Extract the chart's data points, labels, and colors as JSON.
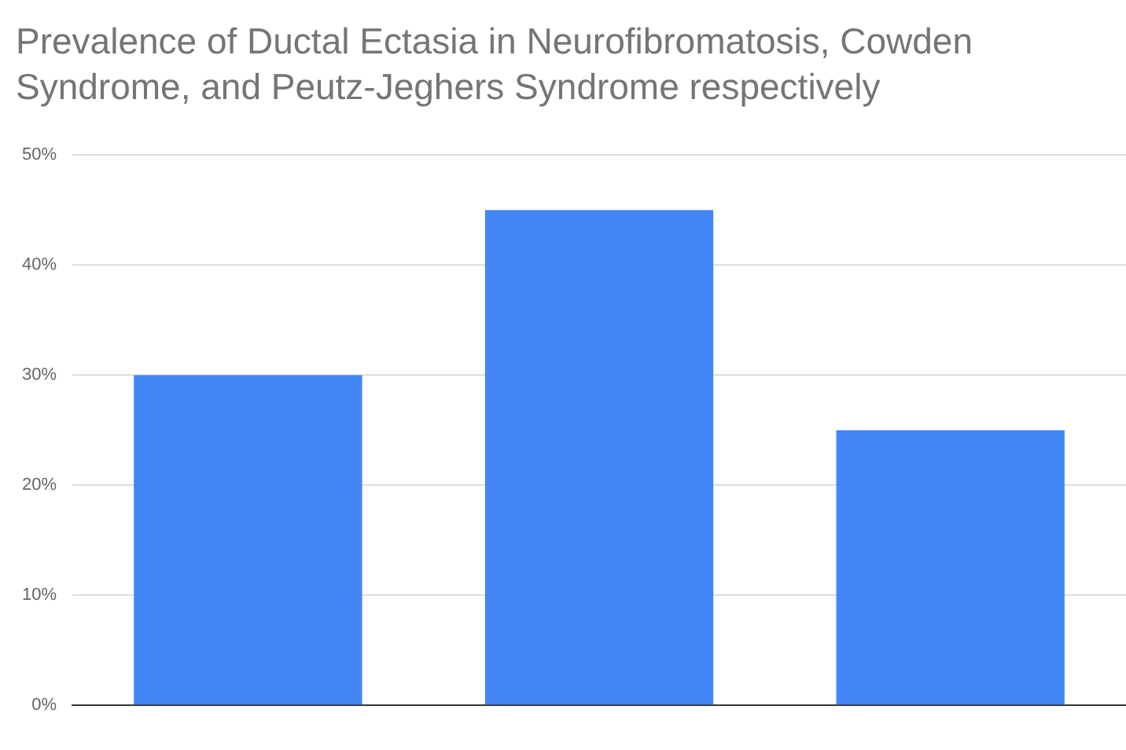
{
  "chart_data": {
    "type": "bar",
    "title": "Prevalence of Ductal Ectasia in Neurofibromatosis, Cowden Syndrome, and Peutz-Jeghers Syndrome respectively",
    "categories": [
      null,
      null,
      null
    ],
    "values": [
      30,
      45,
      25
    ],
    "color": "#4285f4",
    "ylim": [
      0,
      50
    ],
    "yticks": [
      {
        "value": 0,
        "label": "0%"
      },
      {
        "value": 10,
        "label": "10%"
      },
      {
        "value": 20,
        "label": "20%"
      },
      {
        "value": 30,
        "label": "30%"
      },
      {
        "value": 40,
        "label": "40%"
      },
      {
        "value": 50,
        "label": "50%"
      }
    ],
    "grid": "y",
    "legend": false
  }
}
